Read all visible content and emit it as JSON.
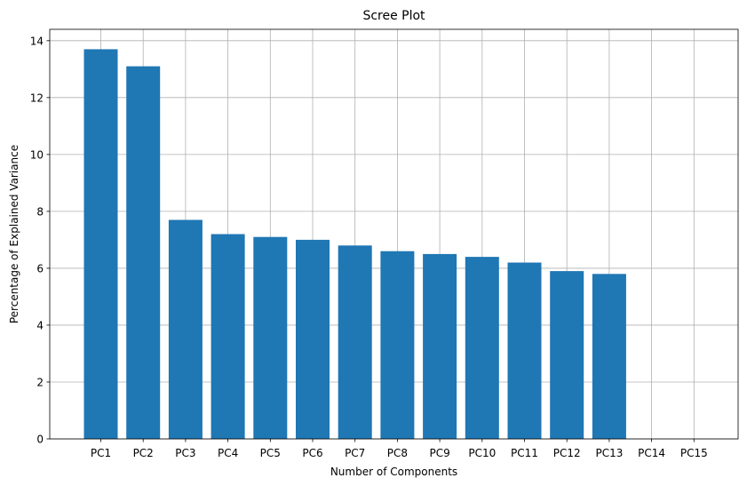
{
  "chart_data": {
    "type": "bar",
    "title": "Scree Plot",
    "xlabel": "Number of Components",
    "ylabel": "Percentage of Explained Variance",
    "categories": [
      "PC1",
      "PC2",
      "PC3",
      "PC4",
      "PC5",
      "PC6",
      "PC7",
      "PC8",
      "PC9",
      "PC10",
      "PC11",
      "PC12",
      "PC13",
      "PC14",
      "PC15"
    ],
    "values": [
      13.7,
      13.1,
      7.7,
      7.2,
      7.1,
      7.0,
      6.8,
      6.6,
      6.5,
      6.4,
      6.2,
      5.9,
      5.8,
      0,
      0
    ],
    "ylim": [
      0,
      14.4
    ],
    "yticks": [
      0,
      2,
      4,
      6,
      8,
      10,
      12,
      14
    ],
    "grid": true,
    "bar_color": "#1f77b4"
  }
}
